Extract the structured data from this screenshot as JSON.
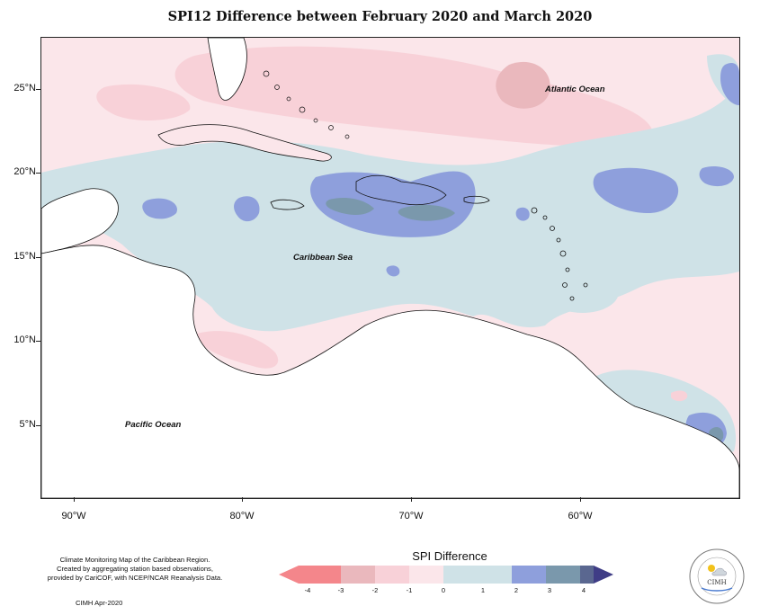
{
  "title": "SPI12 Difference between February 2020 and March 2020",
  "map": {
    "y_ticks": [
      "25°N",
      "20°N",
      "15°N",
      "10°N",
      "5°N"
    ],
    "x_ticks": [
      "90°W",
      "80°W",
      "70°W",
      "60°W"
    ],
    "labels": {
      "atlantic": "Atlantic Ocean",
      "caribbean": "Caribbean Sea",
      "pacific": "Pacific Ocean"
    }
  },
  "credits": {
    "line1": "Climate Monitoring Map of the Caribbean Region.",
    "line2": "Created by aggregating station based observations,",
    "line3": "provided by CariCOF, with NCEP/NCAR Reanalysis Data.",
    "stamp": "CIMH Apr-2020"
  },
  "legend": {
    "title": "SPI Difference",
    "ticks": [
      "-4",
      "-3",
      "-2",
      "-1",
      "0",
      "1",
      "2",
      "3",
      "4"
    ],
    "colors": [
      "#f4868b",
      "#eab8bd",
      "#f8d1d8",
      "#fbe6ea",
      "#cfe2e7",
      "#8e9fdc",
      "#7a98ac",
      "#5a6790",
      "#3f3d86"
    ]
  },
  "logo": {
    "text": "CIMH",
    "ring_top": "Caribbean Institute for",
    "ring_bottom": "Meteorology and Hydrology"
  }
}
